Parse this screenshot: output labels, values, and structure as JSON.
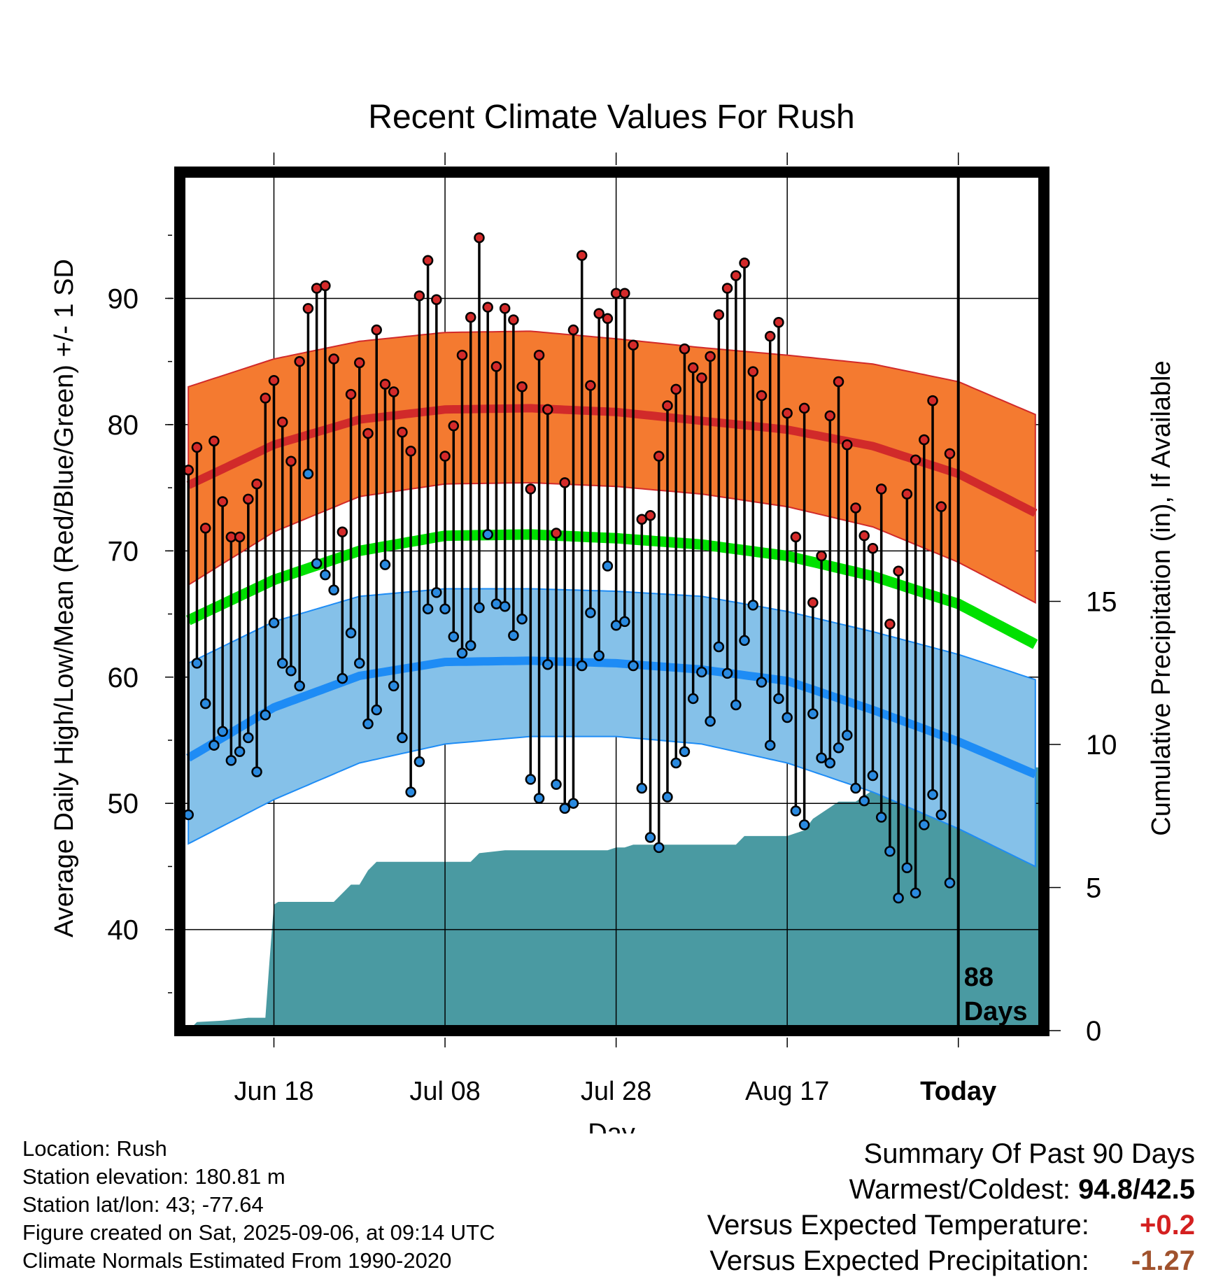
{
  "colors": {
    "high_band": "#f47a30",
    "high_mean": "#d12a2a",
    "low_band": "#85c1e9",
    "low_mean": "#1e8cf5",
    "mean_line": "#00e000",
    "precip_fill": "#4a9aa2",
    "high_dot": "#d42a2a",
    "low_dot": "#2a8ae0",
    "warm_value": "#d42020",
    "precip_value": "#a0522d"
  },
  "chart_data": {
    "type": "line",
    "title": "Recent Climate Values For Rush",
    "xlabel": "Day",
    "ylabel": "Average Daily High/Low/Mean (Red/Blue/Green) +/- 1 SD",
    "y2label": "Cumulative Precipitation (in), If Available",
    "x_tick_labels": [
      "Jun 18",
      "Jul 08",
      "Jul 28",
      "Aug 17",
      "Today"
    ],
    "x_tick_days": [
      10,
      30,
      50,
      70,
      90
    ],
    "xlim": [
      -1,
      100
    ],
    "ylim": [
      32,
      100
    ],
    "y_ticks": [
      40,
      50,
      60,
      70,
      80,
      90
    ],
    "y2lim": [
      0,
      30
    ],
    "y2_ticks": [
      0,
      5,
      10,
      15
    ],
    "today_marker_label": [
      "88",
      "Days"
    ],
    "grid": true,
    "normals": {
      "days": [
        0,
        10,
        20,
        30,
        40,
        50,
        60,
        70,
        80,
        90,
        99
      ],
      "high_mean": [
        75.2,
        78.4,
        80.4,
        81.2,
        81.3,
        81.0,
        80.3,
        79.6,
        78.3,
        76.1,
        73.0
      ],
      "high_upper": [
        83.0,
        85.2,
        86.6,
        87.3,
        87.4,
        86.8,
        86.1,
        85.5,
        84.8,
        83.4,
        80.8
      ],
      "high_lower": [
        67.3,
        71.5,
        74.3,
        75.3,
        75.4,
        75.1,
        74.5,
        73.5,
        71.9,
        69.1,
        65.9
      ],
      "mean_line": [
        64.5,
        67.7,
        70.0,
        71.2,
        71.3,
        71.0,
        70.5,
        69.6,
        68.0,
        65.8,
        62.6
      ],
      "low_mean": [
        53.6,
        57.6,
        60.1,
        61.2,
        61.3,
        61.1,
        60.6,
        59.7,
        57.4,
        54.9,
        52.3
      ],
      "low_upper": [
        61.1,
        64.4,
        66.4,
        67.0,
        67.0,
        66.8,
        66.4,
        65.2,
        63.6,
        61.8,
        59.8
      ],
      "low_lower": [
        46.8,
        50.3,
        53.2,
        54.7,
        55.3,
        55.3,
        54.7,
        53.2,
        50.9,
        48.0,
        45.0
      ]
    },
    "series": [
      {
        "name": "High",
        "values": [
          76.4,
          78.2,
          71.8,
          78.7,
          73.9,
          71.1,
          71.1,
          74.1,
          75.3,
          82.1,
          83.5,
          80.2,
          77.1,
          85.0,
          89.2,
          90.8,
          91.0,
          85.2,
          71.5,
          82.4,
          84.9,
          79.3,
          87.5,
          83.2,
          82.6,
          79.4,
          77.9,
          90.2,
          93.0,
          89.9,
          77.5,
          79.9,
          85.5,
          88.5,
          94.8,
          89.3,
          84.6,
          89.2,
          88.3,
          83.0,
          74.9,
          85.5,
          81.2,
          71.4,
          75.4,
          87.5,
          93.4,
          83.1,
          88.8,
          88.4,
          90.4,
          90.4,
          86.3,
          72.5,
          72.8,
          77.5,
          81.5,
          82.8,
          86.0,
          84.5,
          83.7,
          85.4,
          88.7,
          90.8,
          91.8,
          92.8,
          84.2,
          82.3,
          87.0,
          88.1,
          80.9,
          71.1,
          81.3,
          65.9,
          69.6,
          80.7,
          83.4,
          78.4,
          73.4,
          71.2,
          70.2,
          74.9,
          64.2,
          68.4,
          74.5,
          77.2,
          78.8,
          81.9,
          73.5,
          77.7
        ]
      },
      {
        "name": "Low",
        "values": [
          49.1,
          61.1,
          57.9,
          54.6,
          55.7,
          53.4,
          54.1,
          55.2,
          52.5,
          57.0,
          64.3,
          61.1,
          60.5,
          59.3,
          76.1,
          69.0,
          68.1,
          66.9,
          59.9,
          63.5,
          61.1,
          56.3,
          57.4,
          68.9,
          59.3,
          55.2,
          50.9,
          53.3,
          65.4,
          66.7,
          65.4,
          63.2,
          61.9,
          62.5,
          65.5,
          71.3,
          65.8,
          65.6,
          63.3,
          64.6,
          51.9,
          50.4,
          61.0,
          51.5,
          49.6,
          50.0,
          60.9,
          65.1,
          61.7,
          68.8,
          64.1,
          64.4,
          60.9,
          51.2,
          47.3,
          46.5,
          50.5,
          53.2,
          54.1,
          58.3,
          60.4,
          56.5,
          62.4,
          60.3,
          57.8,
          62.9,
          65.7,
          59.6,
          54.6,
          58.3,
          56.8,
          49.4,
          48.3,
          57.1,
          53.6,
          53.2,
          54.4,
          55.4,
          51.2,
          50.2,
          52.2,
          48.9,
          46.2,
          42.5,
          44.9,
          42.9,
          48.3,
          50.7,
          49.1,
          43.7
        ]
      }
    ],
    "precipitation": {
      "days": [
        -1,
        0,
        1,
        4,
        7,
        8,
        9,
        9.5,
        10,
        10.5,
        17,
        18,
        19,
        20,
        21,
        22,
        30,
        33,
        34,
        37,
        38,
        49,
        50,
        51,
        52,
        53,
        60,
        61,
        63,
        64,
        65,
        66,
        67,
        70,
        71,
        72,
        73,
        76,
        78,
        80,
        83,
        84,
        86,
        87,
        93,
        93.5,
        94,
        100
      ],
      "values": [
        0,
        0,
        0.3,
        0.35,
        0.45,
        0.45,
        0.45,
        2.5,
        4.4,
        4.5,
        4.5,
        4.8,
        5.1,
        5.1,
        5.6,
        5.9,
        5.9,
        5.9,
        6.2,
        6.3,
        6.3,
        6.3,
        6.4,
        6.4,
        6.5,
        6.5,
        6.5,
        6.5,
        6.5,
        6.5,
        6.8,
        6.8,
        6.8,
        6.8,
        6.9,
        7.0,
        7.4,
        8.0,
        8.0,
        8.4,
        8.6,
        8.7,
        8.8,
        9.1,
        9.1,
        9.2,
        9.2,
        9.2
      ]
    }
  },
  "footer": {
    "location": "Location: Rush",
    "elevation": "Station elevation: 180.81 m",
    "latlon": "Station lat/lon: 43; -77.64",
    "created": "Figure created on Sat, 2025-09-06, at 09:14 UTC",
    "normals": "Climate Normals Estimated From 1990-2020"
  },
  "summary": {
    "heading": "Summary Of Past 90 Days",
    "warm_cold_label": "Warmest/Coldest:",
    "warm_cold_value": "94.8/42.5",
    "temp_label": "Versus Expected Temperature:",
    "temp_value": "+0.2",
    "precip_label": "Versus Expected Precipitation:",
    "precip_value": "-1.27"
  }
}
